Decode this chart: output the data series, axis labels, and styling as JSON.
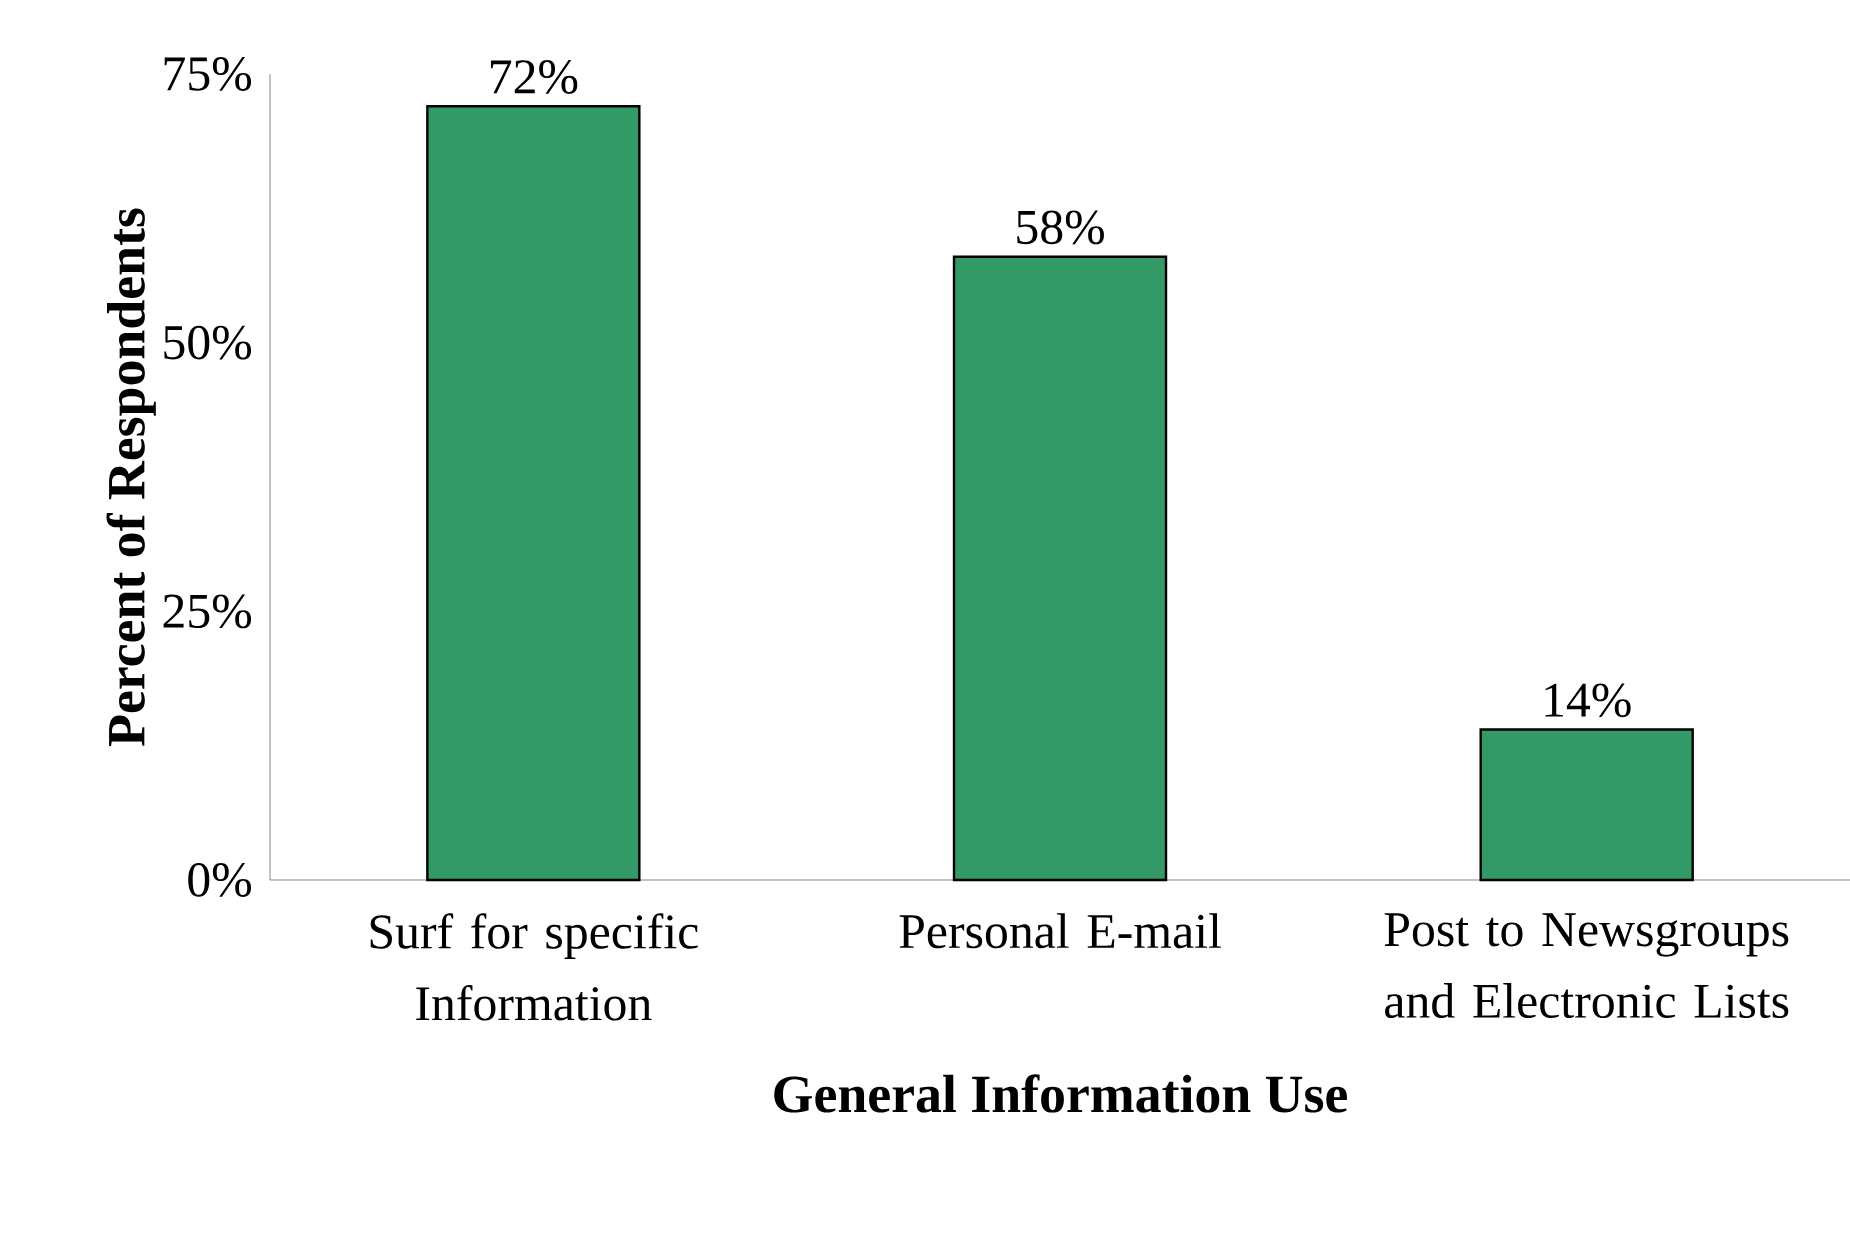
{
  "chart_data": {
    "type": "bar",
    "xlabel": "General Information Use",
    "ylabel": "Percent of Respondents",
    "categories": [
      "Surf for specific Information",
      "Personal E-mail",
      "Post to Newsgroups and Electronic Lists"
    ],
    "values": [
      72,
      58,
      14
    ],
    "value_labels": [
      "72%",
      "58%",
      "14%"
    ],
    "color": "#339966",
    "ylim": [
      0,
      75
    ],
    "yticks": [
      {
        "value": 0,
        "label": "0%"
      },
      {
        "value": 25,
        "label": "25%"
      },
      {
        "value": 50,
        "label": "50%"
      },
      {
        "value": 75,
        "label": "75%"
      }
    ],
    "grid": false
  }
}
